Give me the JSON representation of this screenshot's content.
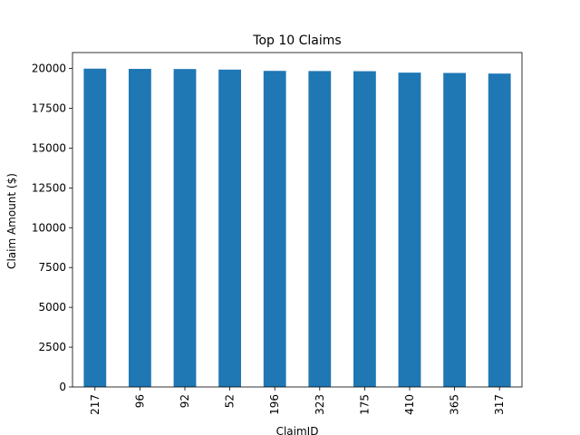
{
  "chart_data": {
    "type": "bar",
    "title": "Top 10 Claims",
    "xlabel": "ClaimID",
    "ylabel": "Claim Amount ($)",
    "categories": [
      "217",
      "96",
      "92",
      "52",
      "196",
      "323",
      "175",
      "410",
      "365",
      "317"
    ],
    "values": [
      19990,
      19975,
      19965,
      19930,
      19850,
      19840,
      19830,
      19740,
      19720,
      19680
    ],
    "ylim": [
      0,
      21000
    ],
    "yticks": [
      0,
      2500,
      5000,
      7500,
      10000,
      12500,
      15000,
      17500,
      20000
    ],
    "bar_color": "#1f77b4",
    "grid": false,
    "legend": "none"
  }
}
